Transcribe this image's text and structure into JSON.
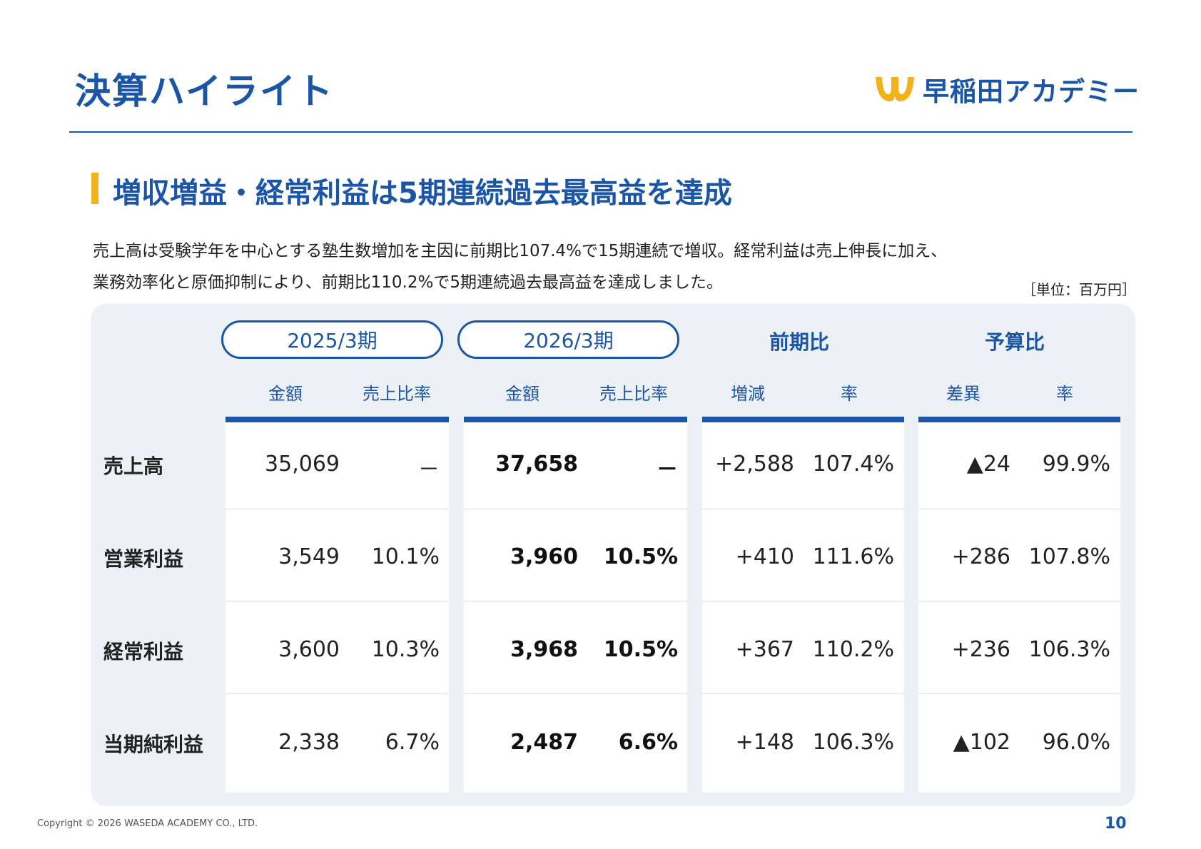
{
  "header": {
    "title": "決算ハイライト",
    "logo_text": "早稲田アカデミー",
    "brand_color": "#1a55a8",
    "accent_color": "#f2b21a"
  },
  "headline": "増収増益・経常利益は5期連続過去最高益を達成",
  "description": [
    "売上高は受験学年を中心とする塾生数増加を主因に前期比107.4%で15期連続で増収。経常利益は売上伸長に加え、",
    "業務効率化と原価抑制により、前期比110.2%で5期連続過去最高益を達成しました。"
  ],
  "unit": "［単位：百万円］",
  "table": {
    "periods": [
      "2025/3期",
      "2026/3期"
    ],
    "groups": [
      "前期比",
      "予算比"
    ],
    "subheaders": [
      "金額",
      "売上比率",
      "金額",
      "売上比率",
      "増減",
      "率",
      "差異",
      "率"
    ],
    "rows": [
      {
        "label": "売上高",
        "cells": [
          "35,069",
          "－",
          "37,658",
          "－",
          "+2,588",
          "107.4%",
          "▲24",
          "99.9%"
        ]
      },
      {
        "label": "営業利益",
        "cells": [
          "3,549",
          "10.1%",
          "3,960",
          "10.5%",
          "+410",
          "111.6%",
          "+286",
          "107.8%"
        ]
      },
      {
        "label": "経常利益",
        "cells": [
          "3,600",
          "10.3%",
          "3,968",
          "10.5%",
          "+367",
          "110.2%",
          "+236",
          "106.3%"
        ]
      },
      {
        "label": "当期純利益",
        "cells": [
          "2,338",
          "6.7%",
          "2,487",
          "6.6%",
          "+148",
          "106.3%",
          "▲102",
          "96.0%"
        ]
      }
    ]
  },
  "footer": {
    "copyright": "Copyright © 2026 WASEDA ACADEMY CO., LTD.",
    "page": "10"
  }
}
